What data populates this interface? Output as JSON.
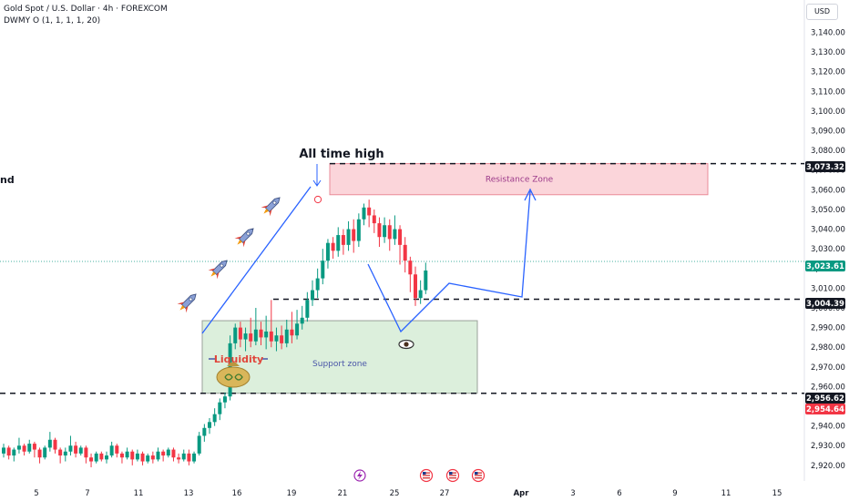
{
  "header": {
    "title": "Gold Spot / U.S. Dollar · 4h · FOREXCOM",
    "indicator": "DWMY O (1, 1, 1, 1, 20)",
    "currency": "USD"
  },
  "chart_data": {
    "type": "candlestick",
    "symbol": "Gold Spot / U.S. Dollar",
    "interval": "4h",
    "y_ticks": [
      3140,
      3130,
      3120,
      3110,
      3100,
      3090,
      3080,
      3070,
      3060,
      3050,
      3040,
      3030,
      3020,
      3010,
      3000,
      2990,
      2980,
      2970,
      2960,
      2950,
      2940,
      2930,
      2920
    ],
    "ylim": [
      2915,
      3146
    ],
    "x_ticks": [
      "5",
      "7",
      "11",
      "13",
      "16",
      "19",
      "21",
      "25",
      "27",
      "Apr",
      "3",
      "6",
      "9",
      "11",
      "15"
    ],
    "price_levels": [
      {
        "label": "3,073.32",
        "value": 3073.32,
        "bg": "#131722",
        "fg": "#ffffff",
        "style": "dashed"
      },
      {
        "label": "3,023.61",
        "value": 3023.61,
        "bg": "#089981",
        "fg": "#ffffff",
        "style": "dotted"
      },
      {
        "label": "3,004.39",
        "value": 3004.39,
        "bg": "#131722",
        "fg": "#ffffff",
        "style": "dashed"
      },
      {
        "label": "2,956.62",
        "value": 2956.62,
        "bg": "#131722",
        "fg": "#ffffff",
        "style": "dashed"
      },
      {
        "label": "2,954.64",
        "value": 2954.64,
        "bg": "#f23645",
        "fg": "#ffffff",
        "style": "none"
      }
    ],
    "zones": [
      {
        "label": "Resistance Zone",
        "from": 3057.5,
        "to": 3073.32,
        "fill": "#fbd5da",
        "stroke": "#e98b98",
        "text_color": "#9c3a8a"
      },
      {
        "label": "Support zone",
        "from": 2956.62,
        "to": 2993.5,
        "fill": "#dcefdc",
        "stroke": "#9aa29a",
        "text_color": "#4a56a8"
      }
    ],
    "annotations": {
      "ath": "All time high",
      "liquidity": "Liquidity",
      "left_cut": "nd"
    },
    "colors": {
      "up": "#089981",
      "down": "#f23645",
      "drawing": "#2962ff",
      "zone_line": "#131722"
    },
    "candles": [
      [
        2926,
        2929,
        2924,
        2931
      ],
      [
        2929,
        2925,
        2923,
        2930
      ],
      [
        2925,
        2928,
        2922,
        2929
      ],
      [
        2928,
        2930,
        2926,
        2934
      ],
      [
        2930,
        2927,
        2925,
        2931
      ],
      [
        2927,
        2931,
        2926,
        2933
      ],
      [
        2931,
        2928,
        2924,
        2932
      ],
      [
        2928,
        2924,
        2921,
        2929
      ],
      [
        2924,
        2929,
        2923,
        2930
      ],
      [
        2929,
        2933,
        2927,
        2937
      ],
      [
        2933,
        2928,
        2926,
        2934
      ],
      [
        2928,
        2925,
        2921,
        2929
      ],
      [
        2925,
        2927,
        2922,
        2929
      ],
      [
        2927,
        2930,
        2925,
        2935
      ],
      [
        2930,
        2926,
        2924,
        2932
      ],
      [
        2926,
        2929,
        2925,
        2930
      ],
      [
        2929,
        2924,
        2921,
        2930
      ],
      [
        2924,
        2922,
        2919,
        2926
      ],
      [
        2922,
        2926,
        2921,
        2927
      ],
      [
        2926,
        2923,
        2922,
        2927
      ],
      [
        2923,
        2925,
        2921,
        2927
      ],
      [
        2925,
        2930,
        2924,
        2932
      ],
      [
        2930,
        2926,
        2924,
        2931
      ],
      [
        2926,
        2924,
        2921,
        2927
      ],
      [
        2924,
        2927,
        2923,
        2929
      ],
      [
        2927,
        2923,
        2920,
        2928
      ],
      [
        2923,
        2926,
        2922,
        2928
      ],
      [
        2926,
        2922,
        2920,
        2927
      ],
      [
        2922,
        2925,
        2921,
        2926
      ],
      [
        2925,
        2923,
        2921,
        2927
      ],
      [
        2923,
        2927,
        2922,
        2929
      ],
      [
        2927,
        2925,
        2922,
        2928
      ],
      [
        2925,
        2928,
        2924,
        2929
      ],
      [
        2928,
        2924,
        2922,
        2929
      ],
      [
        2924,
        2923,
        2921,
        2926
      ],
      [
        2923,
        2926,
        2922,
        2928
      ],
      [
        2926,
        2922,
        2920,
        2928
      ],
      [
        2922,
        2926,
        2921,
        2927
      ],
      [
        2926,
        2935,
        2925,
        2937
      ],
      [
        2935,
        2939,
        2932,
        2941
      ],
      [
        2939,
        2942,
        2936,
        2944
      ],
      [
        2942,
        2946,
        2940,
        2949
      ],
      [
        2946,
        2952,
        2943,
        2954
      ],
      [
        2952,
        2955,
        2949,
        2957
      ],
      [
        2955,
        2982,
        2953,
        2986
      ],
      [
        2982,
        2990,
        2979,
        2992
      ],
      [
        2990,
        2984,
        2980,
        2993
      ],
      [
        2984,
        2987,
        2978,
        2990
      ],
      [
        2987,
        2983,
        2980,
        2995
      ],
      [
        2983,
        2989,
        2981,
        3000
      ],
      [
        2989,
        2985,
        2981,
        2993
      ],
      [
        2985,
        2988,
        2979,
        2996
      ],
      [
        2988,
        2983,
        2980,
        3004
      ],
      [
        2983,
        2986,
        2978,
        2990
      ],
      [
        2986,
        2982,
        2979,
        2991
      ],
      [
        2982,
        2989,
        2980,
        2994
      ],
      [
        2989,
        2986,
        2982,
        2998
      ],
      [
        2986,
        2992,
        2984,
        2999
      ],
      [
        2992,
        2995,
        2989,
        3001
      ],
      [
        2995,
        3004,
        2993,
        3008
      ],
      [
        3004,
        3009,
        3001,
        3014
      ],
      [
        3009,
        3015,
        3005,
        3020
      ],
      [
        3015,
        3024,
        3012,
        3030
      ],
      [
        3024,
        3033,
        3020,
        3035
      ],
      [
        3033,
        3029,
        3025,
        3036
      ],
      [
        3029,
        3037,
        3026,
        3041
      ],
      [
        3037,
        3032,
        3027,
        3040
      ],
      [
        3032,
        3040,
        3029,
        3044
      ],
      [
        3040,
        3034,
        3028,
        3045
      ],
      [
        3034,
        3045,
        3031,
        3048
      ],
      [
        3045,
        3051,
        3042,
        3053
      ],
      [
        3051,
        3047,
        3041,
        3055
      ],
      [
        3047,
        3043,
        3038,
        3050
      ],
      [
        3043,
        3036,
        3031,
        3046
      ],
      [
        3036,
        3042,
        3033,
        3046
      ],
      [
        3042,
        3035,
        3029,
        3045
      ],
      [
        3035,
        3040,
        3032,
        3047
      ],
      [
        3040,
        3032,
        3022,
        3042
      ],
      [
        3032,
        3024,
        3018,
        3036
      ],
      [
        3024,
        3017,
        3008,
        3026
      ],
      [
        3017,
        3005,
        3001,
        3021
      ],
      [
        3005,
        3009,
        3002,
        3014
      ],
      [
        3009,
        3019,
        3007,
        3023
      ]
    ]
  }
}
